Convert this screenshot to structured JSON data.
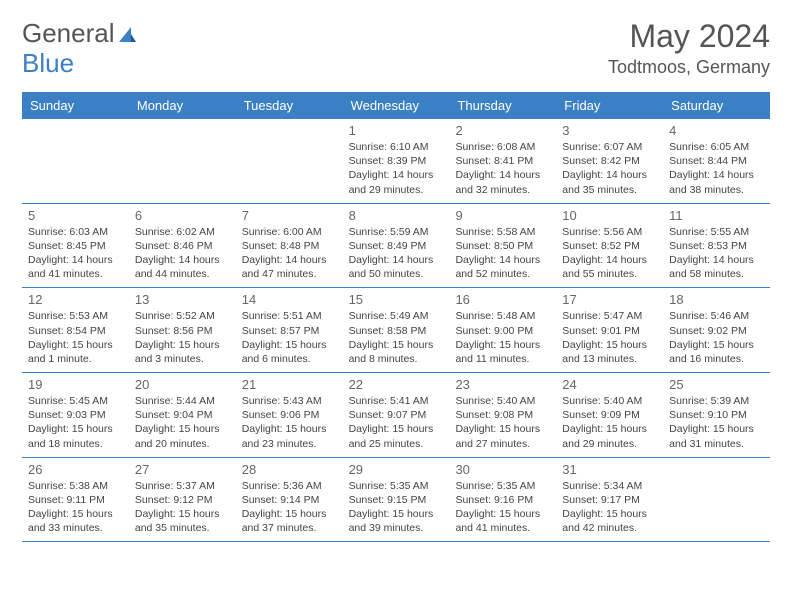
{
  "logo": {
    "text1": "General",
    "text2": "Blue"
  },
  "header": {
    "month": "May 2024",
    "location": "Todtmoos, Germany"
  },
  "colors": {
    "header_bg": "#3b7fc4",
    "header_text": "#ffffff",
    "text": "#444444",
    "muted": "#666666",
    "border": "#3b7fc4"
  },
  "weekdays": [
    "Sunday",
    "Monday",
    "Tuesday",
    "Wednesday",
    "Thursday",
    "Friday",
    "Saturday"
  ],
  "weeks": [
    [
      {
        "n": "",
        "sunrise": "",
        "sunset": "",
        "day1": "",
        "day2": ""
      },
      {
        "n": "",
        "sunrise": "",
        "sunset": "",
        "day1": "",
        "day2": ""
      },
      {
        "n": "",
        "sunrise": "",
        "sunset": "",
        "day1": "",
        "day2": ""
      },
      {
        "n": "1",
        "sunrise": "Sunrise: 6:10 AM",
        "sunset": "Sunset: 8:39 PM",
        "day1": "Daylight: 14 hours",
        "day2": "and 29 minutes."
      },
      {
        "n": "2",
        "sunrise": "Sunrise: 6:08 AM",
        "sunset": "Sunset: 8:41 PM",
        "day1": "Daylight: 14 hours",
        "day2": "and 32 minutes."
      },
      {
        "n": "3",
        "sunrise": "Sunrise: 6:07 AM",
        "sunset": "Sunset: 8:42 PM",
        "day1": "Daylight: 14 hours",
        "day2": "and 35 minutes."
      },
      {
        "n": "4",
        "sunrise": "Sunrise: 6:05 AM",
        "sunset": "Sunset: 8:44 PM",
        "day1": "Daylight: 14 hours",
        "day2": "and 38 minutes."
      }
    ],
    [
      {
        "n": "5",
        "sunrise": "Sunrise: 6:03 AM",
        "sunset": "Sunset: 8:45 PM",
        "day1": "Daylight: 14 hours",
        "day2": "and 41 minutes."
      },
      {
        "n": "6",
        "sunrise": "Sunrise: 6:02 AM",
        "sunset": "Sunset: 8:46 PM",
        "day1": "Daylight: 14 hours",
        "day2": "and 44 minutes."
      },
      {
        "n": "7",
        "sunrise": "Sunrise: 6:00 AM",
        "sunset": "Sunset: 8:48 PM",
        "day1": "Daylight: 14 hours",
        "day2": "and 47 minutes."
      },
      {
        "n": "8",
        "sunrise": "Sunrise: 5:59 AM",
        "sunset": "Sunset: 8:49 PM",
        "day1": "Daylight: 14 hours",
        "day2": "and 50 minutes."
      },
      {
        "n": "9",
        "sunrise": "Sunrise: 5:58 AM",
        "sunset": "Sunset: 8:50 PM",
        "day1": "Daylight: 14 hours",
        "day2": "and 52 minutes."
      },
      {
        "n": "10",
        "sunrise": "Sunrise: 5:56 AM",
        "sunset": "Sunset: 8:52 PM",
        "day1": "Daylight: 14 hours",
        "day2": "and 55 minutes."
      },
      {
        "n": "11",
        "sunrise": "Sunrise: 5:55 AM",
        "sunset": "Sunset: 8:53 PM",
        "day1": "Daylight: 14 hours",
        "day2": "and 58 minutes."
      }
    ],
    [
      {
        "n": "12",
        "sunrise": "Sunrise: 5:53 AM",
        "sunset": "Sunset: 8:54 PM",
        "day1": "Daylight: 15 hours",
        "day2": "and 1 minute."
      },
      {
        "n": "13",
        "sunrise": "Sunrise: 5:52 AM",
        "sunset": "Sunset: 8:56 PM",
        "day1": "Daylight: 15 hours",
        "day2": "and 3 minutes."
      },
      {
        "n": "14",
        "sunrise": "Sunrise: 5:51 AM",
        "sunset": "Sunset: 8:57 PM",
        "day1": "Daylight: 15 hours",
        "day2": "and 6 minutes."
      },
      {
        "n": "15",
        "sunrise": "Sunrise: 5:49 AM",
        "sunset": "Sunset: 8:58 PM",
        "day1": "Daylight: 15 hours",
        "day2": "and 8 minutes."
      },
      {
        "n": "16",
        "sunrise": "Sunrise: 5:48 AM",
        "sunset": "Sunset: 9:00 PM",
        "day1": "Daylight: 15 hours",
        "day2": "and 11 minutes."
      },
      {
        "n": "17",
        "sunrise": "Sunrise: 5:47 AM",
        "sunset": "Sunset: 9:01 PM",
        "day1": "Daylight: 15 hours",
        "day2": "and 13 minutes."
      },
      {
        "n": "18",
        "sunrise": "Sunrise: 5:46 AM",
        "sunset": "Sunset: 9:02 PM",
        "day1": "Daylight: 15 hours",
        "day2": "and 16 minutes."
      }
    ],
    [
      {
        "n": "19",
        "sunrise": "Sunrise: 5:45 AM",
        "sunset": "Sunset: 9:03 PM",
        "day1": "Daylight: 15 hours",
        "day2": "and 18 minutes."
      },
      {
        "n": "20",
        "sunrise": "Sunrise: 5:44 AM",
        "sunset": "Sunset: 9:04 PM",
        "day1": "Daylight: 15 hours",
        "day2": "and 20 minutes."
      },
      {
        "n": "21",
        "sunrise": "Sunrise: 5:43 AM",
        "sunset": "Sunset: 9:06 PM",
        "day1": "Daylight: 15 hours",
        "day2": "and 23 minutes."
      },
      {
        "n": "22",
        "sunrise": "Sunrise: 5:41 AM",
        "sunset": "Sunset: 9:07 PM",
        "day1": "Daylight: 15 hours",
        "day2": "and 25 minutes."
      },
      {
        "n": "23",
        "sunrise": "Sunrise: 5:40 AM",
        "sunset": "Sunset: 9:08 PM",
        "day1": "Daylight: 15 hours",
        "day2": "and 27 minutes."
      },
      {
        "n": "24",
        "sunrise": "Sunrise: 5:40 AM",
        "sunset": "Sunset: 9:09 PM",
        "day1": "Daylight: 15 hours",
        "day2": "and 29 minutes."
      },
      {
        "n": "25",
        "sunrise": "Sunrise: 5:39 AM",
        "sunset": "Sunset: 9:10 PM",
        "day1": "Daylight: 15 hours",
        "day2": "and 31 minutes."
      }
    ],
    [
      {
        "n": "26",
        "sunrise": "Sunrise: 5:38 AM",
        "sunset": "Sunset: 9:11 PM",
        "day1": "Daylight: 15 hours",
        "day2": "and 33 minutes."
      },
      {
        "n": "27",
        "sunrise": "Sunrise: 5:37 AM",
        "sunset": "Sunset: 9:12 PM",
        "day1": "Daylight: 15 hours",
        "day2": "and 35 minutes."
      },
      {
        "n": "28",
        "sunrise": "Sunrise: 5:36 AM",
        "sunset": "Sunset: 9:14 PM",
        "day1": "Daylight: 15 hours",
        "day2": "and 37 minutes."
      },
      {
        "n": "29",
        "sunrise": "Sunrise: 5:35 AM",
        "sunset": "Sunset: 9:15 PM",
        "day1": "Daylight: 15 hours",
        "day2": "and 39 minutes."
      },
      {
        "n": "30",
        "sunrise": "Sunrise: 5:35 AM",
        "sunset": "Sunset: 9:16 PM",
        "day1": "Daylight: 15 hours",
        "day2": "and 41 minutes."
      },
      {
        "n": "31",
        "sunrise": "Sunrise: 5:34 AM",
        "sunset": "Sunset: 9:17 PM",
        "day1": "Daylight: 15 hours",
        "day2": "and 42 minutes."
      },
      {
        "n": "",
        "sunrise": "",
        "sunset": "",
        "day1": "",
        "day2": ""
      }
    ]
  ]
}
